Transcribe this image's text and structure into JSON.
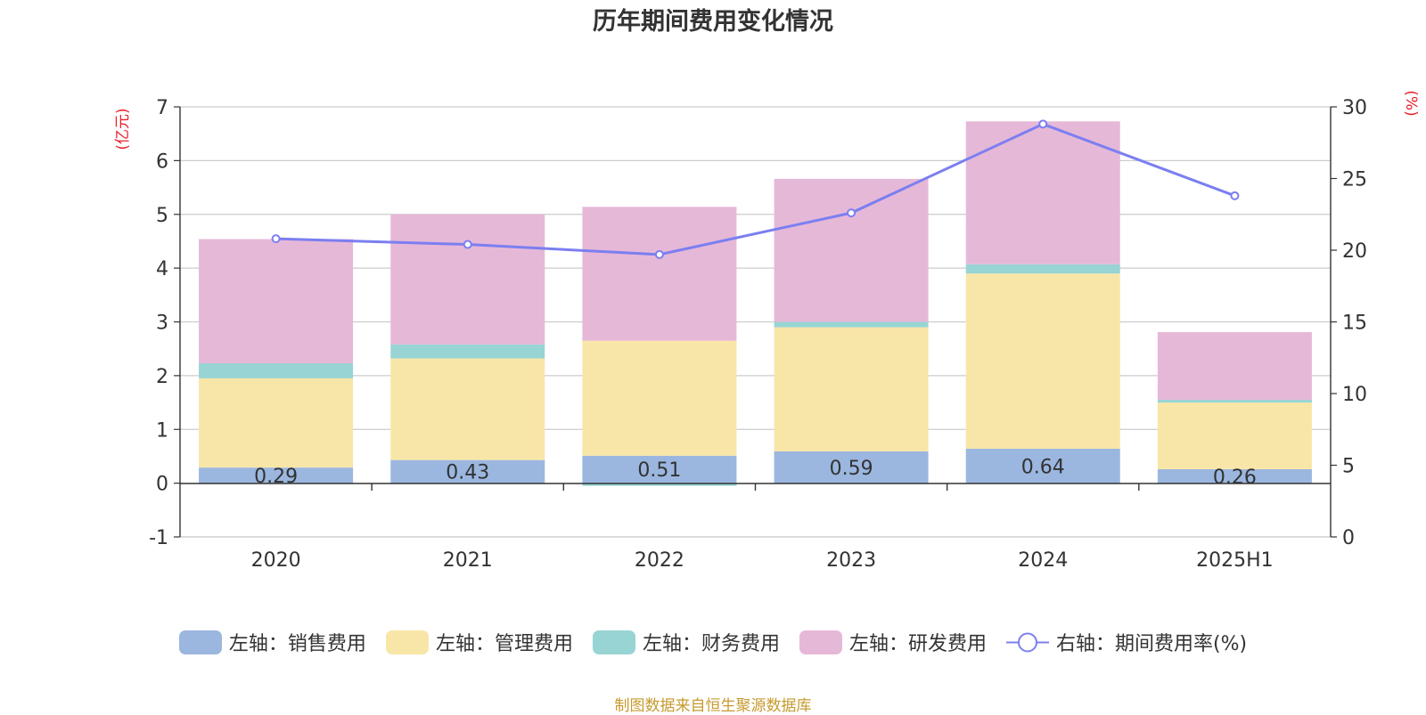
{
  "chart_data": {
    "type": "bar",
    "title": "历年期间费用变化情况",
    "left_axis_unit": "(亿元)",
    "right_axis_unit": "(%)",
    "categories": [
      "2020",
      "2021",
      "2022",
      "2023",
      "2024",
      "2025H1"
    ],
    "left_ylim": [
      -1,
      7
    ],
    "left_ticks": [
      -1,
      0,
      1,
      2,
      3,
      4,
      5,
      6,
      7
    ],
    "right_ylim": [
      0,
      30
    ],
    "right_ticks": [
      0,
      5,
      10,
      15,
      20,
      25,
      30
    ],
    "grid": true,
    "legend_position": "bottom",
    "series": [
      {
        "name": "左轴：销售费用",
        "type": "bar",
        "axis": "left",
        "color": "#9bb7e0",
        "values": [
          0.29,
          0.43,
          0.51,
          0.59,
          0.64,
          0.26
        ],
        "labels": [
          "0.29",
          "0.43",
          "0.51",
          "0.59",
          "0.64",
          "0.26"
        ]
      },
      {
        "name": "左轴：管理费用",
        "type": "bar",
        "axis": "left",
        "color": "#f8e6a8",
        "values": [
          1.66,
          1.89,
          2.14,
          2.31,
          3.26,
          1.24
        ]
      },
      {
        "name": "左轴：财务费用",
        "type": "bar",
        "axis": "left",
        "color": "#98d4d4",
        "values": [
          0.28,
          0.26,
          -0.05,
          0.1,
          0.17,
          0.05
        ]
      },
      {
        "name": "左轴：研发费用",
        "type": "bar",
        "axis": "left",
        "color": "#e6b8d8",
        "values": [
          2.31,
          2.42,
          2.49,
          2.66,
          2.66,
          1.26
        ]
      },
      {
        "name": "右轴：期间费用率(%)",
        "type": "line",
        "axis": "right",
        "color": "#7b7ff0",
        "values": [
          20.8,
          20.4,
          19.7,
          22.6,
          28.8,
          23.8
        ]
      }
    ]
  },
  "footer": "制图数据来自恒生聚源数据库",
  "colors": {
    "axis_unit": "#e8202a",
    "footer": "#c69a2e",
    "grid": "#cccccc"
  }
}
